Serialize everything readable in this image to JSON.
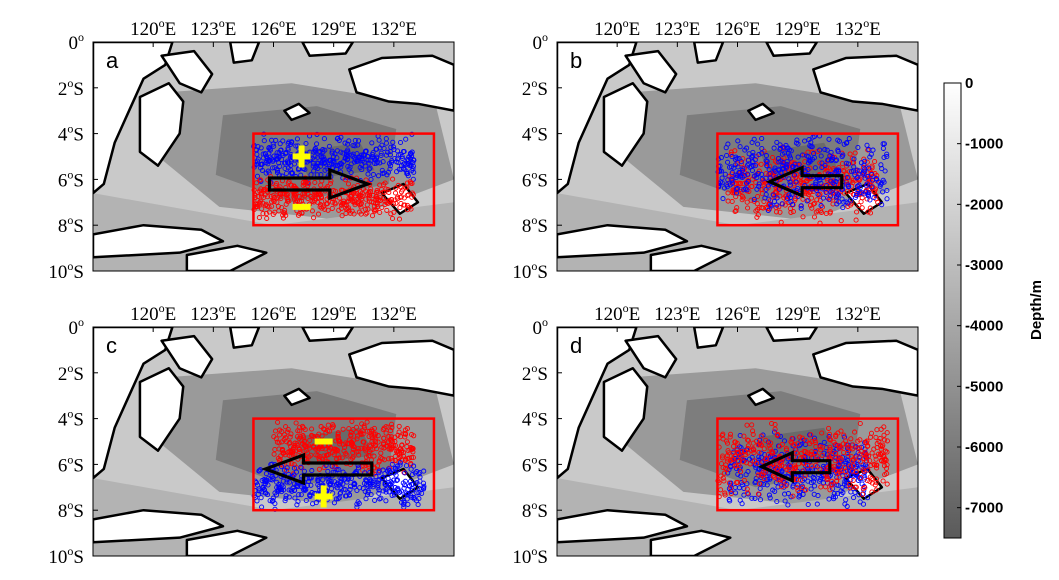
{
  "chart_data": {
    "type": "scatter",
    "description_of_axes": {
      "x_ticks": [
        120,
        123,
        126,
        129,
        132
      ],
      "y_ticks": [
        0,
        -2,
        -4,
        -6,
        -8,
        -10
      ],
      "xlim": [
        117,
        135
      ],
      "ylim": [
        -10,
        0
      ]
    },
    "x_tick_labels": [
      {
        "deg": "120",
        "sup": "o",
        "hemi": "E"
      },
      {
        "deg": "123",
        "sup": "o",
        "hemi": "E"
      },
      {
        "deg": "126",
        "sup": "o",
        "hemi": "E"
      },
      {
        "deg": "129",
        "sup": "o",
        "hemi": "E"
      },
      {
        "deg": "132",
        "sup": "o",
        "hemi": "E"
      }
    ],
    "y_tick_labels": [
      {
        "deg": "0",
        "sup": "o",
        "hemi": ""
      },
      {
        "deg": "2",
        "sup": "o",
        "hemi": "S"
      },
      {
        "deg": "4",
        "sup": "o",
        "hemi": "S"
      },
      {
        "deg": "6",
        "sup": "o",
        "hemi": "S"
      },
      {
        "deg": "8",
        "sup": "o",
        "hemi": "S"
      },
      {
        "deg": "10",
        "sup": "o",
        "hemi": "S"
      }
    ],
    "region_box": {
      "lon": [
        125,
        134
      ],
      "lat": [
        -8,
        -4
      ],
      "color": "#ff0000"
    },
    "series_colors": {
      "red": "#ff0000",
      "blue": "#0000ff",
      "sign": "#ffff00",
      "arrow": "#000000"
    },
    "panels": [
      {
        "label": "a",
        "red_cluster": {
          "lon": [
            125,
            133
          ],
          "lat": [
            -7.8,
            -5.8
          ]
        },
        "blue_cluster": {
          "lon": [
            125,
            133
          ],
          "lat": [
            -6.2,
            -4.0
          ]
        },
        "arrow": {
          "from": [
            125.8,
            -6.2
          ],
          "to": [
            130.7,
            -6.2
          ],
          "direction": "east"
        },
        "signs": [
          {
            "text": "+",
            "lon": [
              127.4
            ],
            "lat": -5.0
          },
          {
            "text": "-",
            "lon": [
              127.4
            ],
            "lat": -7.2
          }
        ]
      },
      {
        "label": "b",
        "red_cluster": {
          "lon": [
            125.5,
            133
          ],
          "lat": [
            -8.0,
            -4.5
          ]
        },
        "blue_cluster": {
          "lon": [
            125,
            133.5
          ],
          "lat": [
            -7.5,
            -4.0
          ]
        },
        "arrow": {
          "from": [
            131.2,
            -6.1
          ],
          "to": [
            127.6,
            -6.1
          ],
          "direction": "west"
        },
        "signs": []
      },
      {
        "label": "c",
        "red_cluster": {
          "lon": [
            126,
            133
          ],
          "lat": [
            -6.5,
            -4.0
          ]
        },
        "blue_cluster": {
          "lon": [
            125,
            133.5
          ],
          "lat": [
            -8.0,
            -5.8
          ]
        },
        "arrow": {
          "from": [
            130.9,
            -6.2
          ],
          "to": [
            125.6,
            -6.2
          ],
          "direction": "west"
        },
        "signs": [
          {
            "text": "-",
            "lon": [
              128.5
            ],
            "lat": -5.0
          },
          {
            "text": "+",
            "lon": [
              128.5
            ],
            "lat": -7.4
          }
        ]
      },
      {
        "label": "d",
        "red_cluster": {
          "lon": [
            125,
            133.5
          ],
          "lat": [
            -7.5,
            -4.0
          ]
        },
        "blue_cluster": {
          "lon": [
            125.5,
            132.5
          ],
          "lat": [
            -8.0,
            -4.5
          ]
        },
        "arrow": {
          "from": [
            130.6,
            -6.1
          ],
          "to": [
            127.2,
            -6.1
          ],
          "direction": "west"
        },
        "signs": []
      }
    ],
    "colorbar": {
      "label": "Depth/m",
      "ticks": [
        "0",
        "-1000",
        "-2000",
        "-3000",
        "-4000",
        "-5000",
        "-6000",
        "-7000"
      ],
      "range": [
        -7500,
        0
      ],
      "color_top": "#ffffff",
      "color_bottom": "#5a5a5a"
    }
  }
}
